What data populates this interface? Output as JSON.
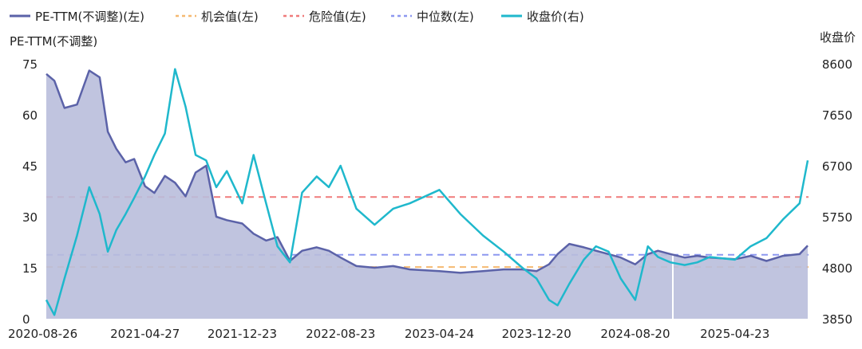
{
  "chart_data": {
    "type": "line",
    "title": "",
    "left_axis": {
      "label": "PE-TTM(不调整)",
      "ylim": [
        0,
        75
      ],
      "ticks": [
        0,
        15,
        30,
        45,
        60,
        75
      ]
    },
    "right_axis": {
      "label": "收盘价",
      "ylim": [
        3850,
        8600
      ],
      "ticks": [
        3850,
        4800,
        5750,
        6700,
        7650,
        8600
      ]
    },
    "x_ticks": [
      "2020-08-26",
      "2021-04-27",
      "2021-12-23",
      "2022-08-23",
      "2023-04-24",
      "2023-12-20",
      "2024-08-20",
      "2025-04-23"
    ],
    "legend_position": "top",
    "legend": [
      {
        "name": "PE-TTM(不调整)(左)",
        "color": "#5b62a8",
        "style": "solid"
      },
      {
        "name": "机会值(左)",
        "color": "#f5b971",
        "style": "dashed"
      },
      {
        "name": "危险值(左)",
        "color": "#f07b7b",
        "style": "dashed"
      },
      {
        "name": "中位数(左)",
        "color": "#8d98f0",
        "style": "dashed"
      },
      {
        "name": "收盘价(右)",
        "color": "#1fb8cc",
        "style": "solid"
      }
    ],
    "reference_lines": {
      "opportunity": 15.2,
      "danger": 35.8,
      "median": 18.8
    },
    "pe_series": {
      "name": "PE-TTM(不调整)(左)",
      "x": [
        "2020-08-26",
        "2020-09-15",
        "2020-10-10",
        "2020-11-10",
        "2020-12-10",
        "2021-01-05",
        "2021-01-25",
        "2021-02-15",
        "2021-03-10",
        "2021-03-31",
        "2021-04-27",
        "2021-05-20",
        "2021-06-15",
        "2021-07-10",
        "2021-08-05",
        "2021-08-30",
        "2021-09-25",
        "2021-10-20",
        "2021-11-15",
        "2021-12-23",
        "2022-01-20",
        "2022-02-20",
        "2022-03-20",
        "2022-04-20",
        "2022-05-20",
        "2022-06-25",
        "2022-07-25",
        "2022-08-23",
        "2022-10-01",
        "2022-11-15",
        "2022-12-31",
        "2023-02-10",
        "2023-04-24",
        "2023-06-15",
        "2023-08-10",
        "2023-09-30",
        "2023-11-15",
        "2023-12-20",
        "2024-01-20",
        "2024-02-10",
        "2024-03-10",
        "2024-04-15",
        "2024-05-15",
        "2024-06-15",
        "2024-07-15",
        "2024-08-20",
        "2024-09-20",
        "2024-10-15",
        "2024-11-15",
        "2024-12-20",
        "2025-01-20",
        "2025-02-20",
        "2025-04-23",
        "2025-06-01",
        "2025-07-10",
        "2025-08-20",
        "2025-09-30",
        "2025-10-20"
      ],
      "values": [
        72,
        70,
        62,
        63,
        73,
        71,
        55,
        50,
        46,
        47,
        39,
        37,
        42,
        40,
        36,
        43,
        45,
        30,
        29,
        28,
        25,
        23,
        24,
        17,
        20,
        21,
        20,
        18,
        15.5,
        15,
        15.5,
        14.5,
        14,
        13.5,
        14,
        14.5,
        14.5,
        14,
        16,
        19,
        22,
        21,
        20,
        19,
        18,
        16,
        19,
        20,
        19,
        18,
        18.5,
        18,
        17.5,
        18.5,
        17,
        18.5,
        19,
        21.5
      ]
    },
    "close_series": {
      "name": "收盘价(右)",
      "x": [
        "2020-08-26",
        "2020-09-15",
        "2020-10-10",
        "2020-11-10",
        "2020-12-10",
        "2021-01-05",
        "2021-01-25",
        "2021-02-15",
        "2021-03-10",
        "2021-03-31",
        "2021-04-27",
        "2021-05-20",
        "2021-06-15",
        "2021-07-10",
        "2021-08-05",
        "2021-08-30",
        "2021-09-25",
        "2021-10-20",
        "2021-11-15",
        "2021-12-23",
        "2022-01-20",
        "2022-02-20",
        "2022-03-20",
        "2022-04-20",
        "2022-05-20",
        "2022-06-25",
        "2022-07-25",
        "2022-08-23",
        "2022-10-01",
        "2022-11-15",
        "2022-12-31",
        "2023-02-10",
        "2023-04-24",
        "2023-06-15",
        "2023-08-10",
        "2023-09-30",
        "2023-11-15",
        "2023-12-20",
        "2024-01-20",
        "2024-02-10",
        "2024-03-10",
        "2024-04-15",
        "2024-05-15",
        "2024-06-15",
        "2024-07-15",
        "2024-08-20",
        "2024-09-20",
        "2024-10-15",
        "2024-11-15",
        "2024-12-20",
        "2025-01-20",
        "2025-02-20",
        "2025-04-23",
        "2025-06-01",
        "2025-07-10",
        "2025-08-20",
        "2025-09-30",
        "2025-10-20"
      ],
      "values": [
        4200,
        3920,
        4600,
        5400,
        6300,
        5800,
        5100,
        5500,
        5800,
        6100,
        6500,
        6900,
        7300,
        8500,
        7800,
        6900,
        6800,
        6300,
        6600,
        6000,
        6900,
        6000,
        5200,
        4900,
        6200,
        6500,
        6300,
        6700,
        5900,
        5600,
        5900,
        6000,
        6250,
        5800,
        5400,
        5100,
        4800,
        4600,
        4200,
        4100,
        4500,
        4950,
        5200,
        5100,
        4600,
        4200,
        5200,
        5000,
        4900,
        4850,
        4900,
        5000,
        4950,
        5200,
        5350,
        5700,
        6000,
        6800
      ]
    }
  }
}
